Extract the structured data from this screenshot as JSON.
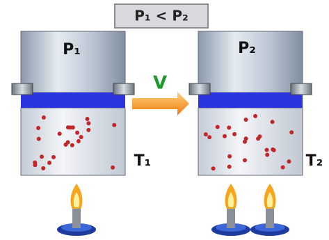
{
  "header": {
    "title": "P₁ < P₂"
  },
  "left": {
    "pressure": "P₁",
    "temperature": "T₁"
  },
  "arrow": {
    "label": "V"
  },
  "right": {
    "pressure": "P₂",
    "temperature": "T₂"
  }
}
